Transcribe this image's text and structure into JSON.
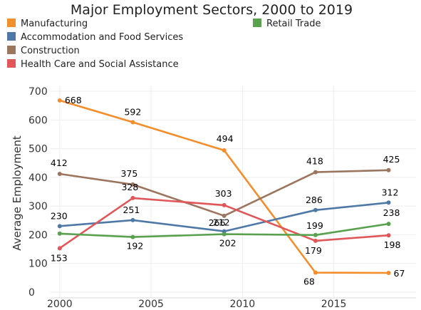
{
  "chart_data": {
    "type": "line",
    "title": "Major Employment Sectors, 2000 to 2019",
    "ylabel": "Average Employment",
    "xlabel": "",
    "x_ticks": [
      2000,
      2005,
      2010,
      2015
    ],
    "y_ticks": [
      0,
      100,
      200,
      300,
      400,
      500,
      600,
      700
    ],
    "xlim": [
      1999.5,
      2019.5
    ],
    "ylim": [
      -20,
      720
    ],
    "grid": true,
    "legend_position": "top",
    "x": [
      2000,
      2004,
      2009,
      2014,
      2018
    ],
    "series": [
      {
        "name": "Manufacturing",
        "color": "#f28e2b",
        "values": [
          668,
          592,
          494,
          68,
          67
        ],
        "labels": [
          "668",
          "592",
          "494",
          "68",
          "67"
        ]
      },
      {
        "name": "Accommodation and Food Services",
        "color": "#4e79a7",
        "values": [
          230,
          251,
          212,
          286,
          312
        ],
        "labels": [
          "230",
          "251",
          "212",
          "286",
          "312"
        ]
      },
      {
        "name": "Construction",
        "color": "#9c755f",
        "values": [
          412,
          375,
          266,
          418,
          425
        ],
        "labels": [
          "412",
          "375",
          "266",
          "418",
          "425"
        ]
      },
      {
        "name": "Health Care and Social Assistance",
        "color": "#e15759",
        "values": [
          153,
          328,
          303,
          179,
          198
        ],
        "labels": [
          "153",
          "328",
          "303",
          "179",
          "198"
        ]
      },
      {
        "name": "Retail Trade",
        "color": "#59a14f",
        "values": [
          204,
          192,
          202,
          199,
          238
        ],
        "labels": [
          "",
          "192",
          "202",
          "199",
          "238"
        ]
      }
    ]
  }
}
